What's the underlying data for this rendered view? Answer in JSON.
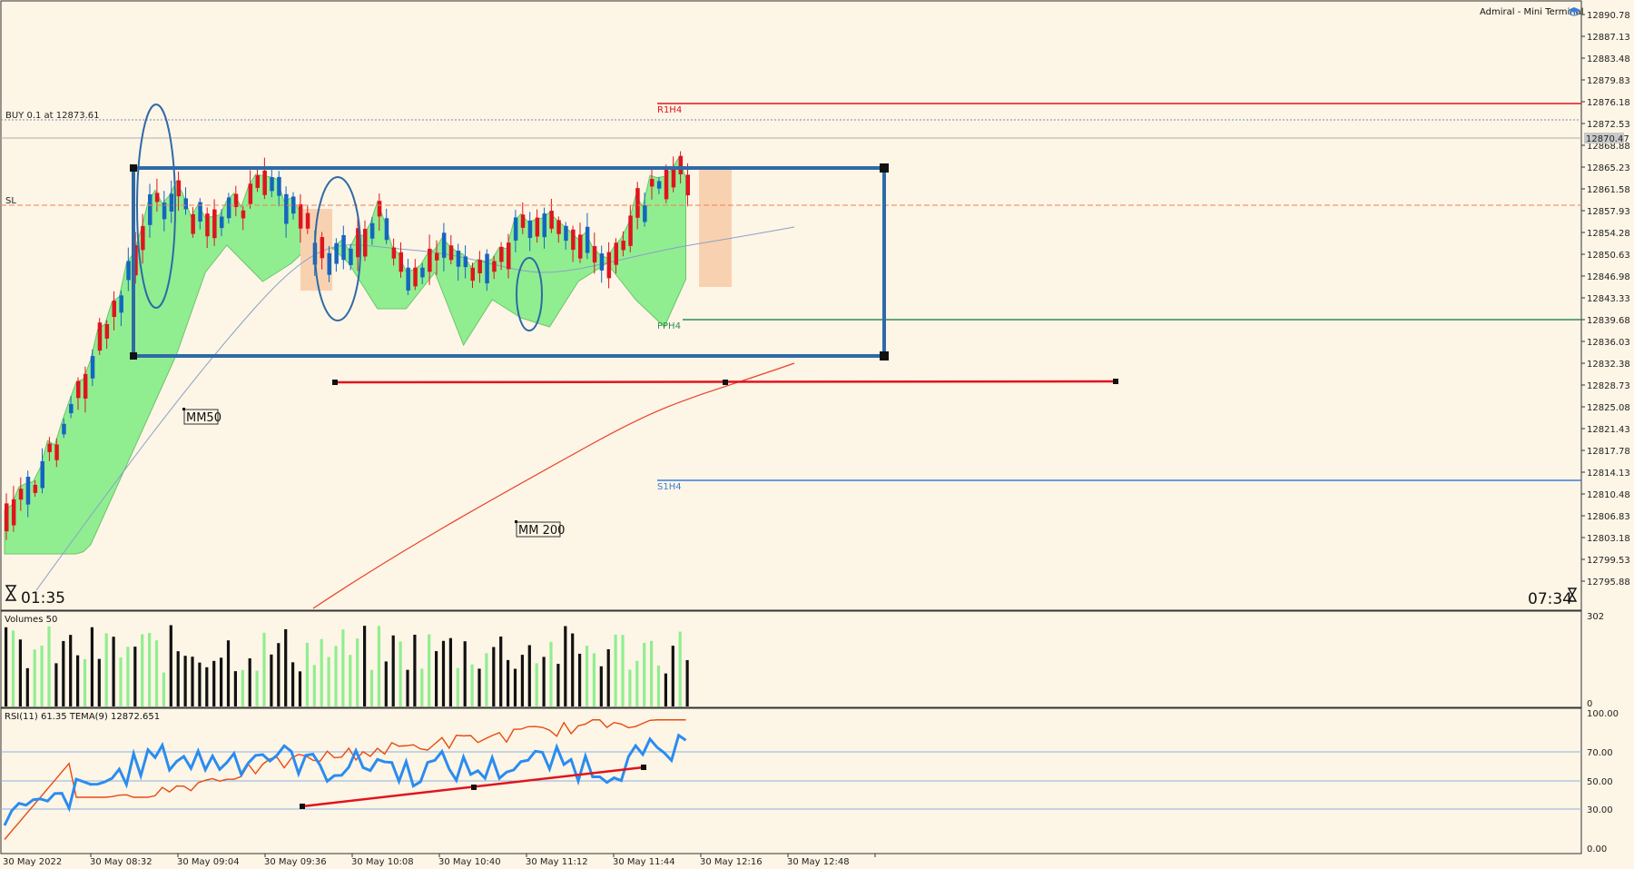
{
  "header": {
    "terminal_label": "Admiral - Mini Terminal",
    "terminal_icon": "graduation-cap-icon"
  },
  "main": {
    "buy_label": "BUY 0.1 at 12873.61",
    "sl_label": "SL",
    "pivots": {
      "r1": "R1H4",
      "pp": "PPH4",
      "s1": "S1H4"
    },
    "ma_labels": {
      "ma50": "MM50",
      "ma200": "MM 200"
    },
    "timer_left": "01:35",
    "timer_right": "07:34",
    "current_price": "12870.47",
    "y_ticks": [
      "12890.78",
      "12887.13",
      "12883.48",
      "12879.83",
      "12876.18",
      "12872.53",
      "12868.88",
      "12865.23",
      "12861.58",
      "12857.93",
      "12854.28",
      "12850.63",
      "12846.98",
      "12843.33",
      "12839.68",
      "12836.03",
      "12832.38",
      "12828.73",
      "12825.08",
      "12821.43",
      "12817.78",
      "12814.13",
      "12810.48",
      "12806.83",
      "12803.18",
      "12799.53",
      "12795.88"
    ]
  },
  "volume": {
    "title": "Volumes 50",
    "max": "302",
    "min": "0"
  },
  "rsi": {
    "title": "RSI(11) 61.35 TEMA(9) 12872.651",
    "ticks": [
      "100.00",
      "70.00",
      "50.00",
      "30.00",
      "0.00"
    ]
  },
  "x_axis": {
    "ticks": [
      "30 May 2022",
      "30 May 08:32",
      "30 May 09:04",
      "30 May 09:36",
      "30 May 10:08",
      "30 May 10:40",
      "30 May 11:12",
      "30 May 11:44",
      "30 May 12:16",
      "30 May 12:48"
    ]
  },
  "colors": {
    "bull": "#1565c0",
    "bear": "#e0141e",
    "cloud": "#90ee90",
    "cloud_orange": "#f8d2b0",
    "box": "#2f6aa6",
    "r1": "#e0141e",
    "pp": "#2e8b57",
    "s1": "#3b7dd8",
    "ma200": "#e8422a",
    "ma50": "#8aa0c8",
    "rsi": "#2a8cf0",
    "tema": "#e84a10"
  }
}
